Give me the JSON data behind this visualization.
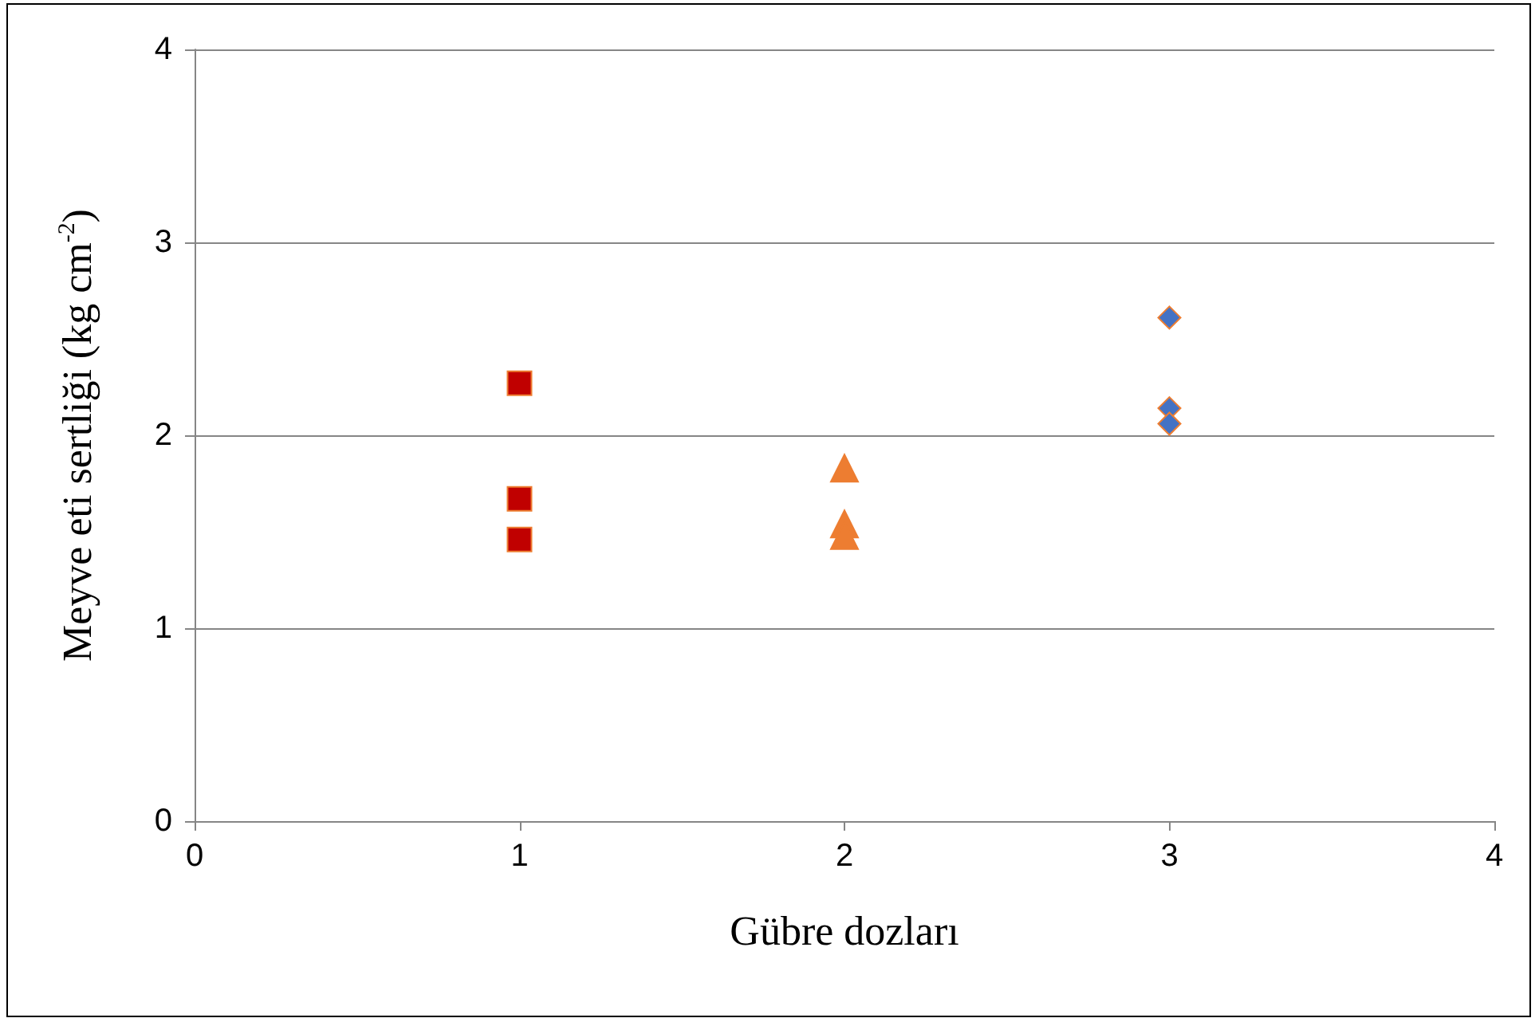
{
  "chart_data": {
    "type": "scatter",
    "xlabel": "Gübre dozları",
    "ylabel": "Meyve eti sertliği (kg cm$^{-2}$)",
    "series": [
      {
        "color": "#c00000",
        "marker": "square",
        "x": [
          1,
          1,
          1
        ],
        "values": [
          2.27,
          1.67,
          1.46
        ]
      },
      {
        "color": "#ed7d31",
        "marker": "triangle",
        "x": [
          2,
          2,
          2
        ],
        "values": [
          1.83,
          1.54,
          1.48
        ]
      },
      {
        "color": "#4472c4",
        "marker": "diamond",
        "x": [
          3,
          3,
          3
        ],
        "values": [
          2.61,
          2.14,
          2.06
        ]
      }
    ],
    "xlim": [
      0,
      4
    ],
    "xticks": [
      0,
      1,
      2,
      3,
      4
    ],
    "ylim": [
      0,
      4
    ],
    "yticks": [
      0,
      1,
      2,
      3,
      4
    ],
    "grid": "y"
  }
}
